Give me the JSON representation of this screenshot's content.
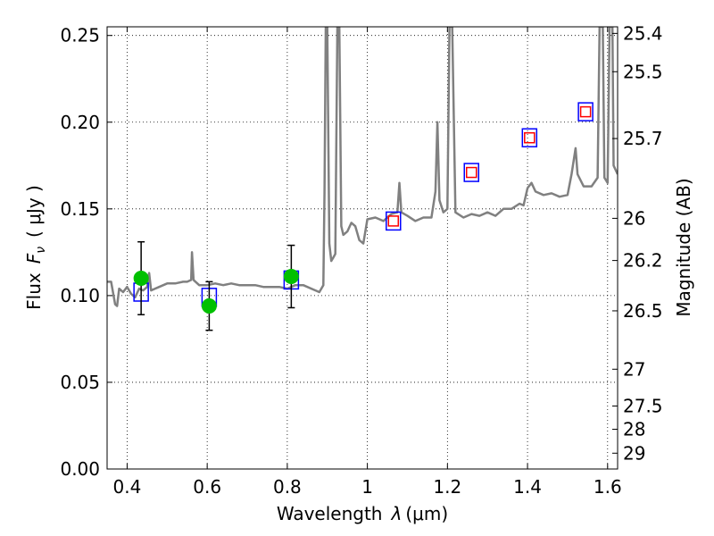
{
  "chart_data": {
    "type": "line",
    "xlabel": "Wavelength",
    "xlabel_symbol": "λ",
    "xlabel_unit": "(μm)",
    "ylabel": "Flux",
    "ylabel_symbol": "F",
    "ylabel_subscript": "ν",
    "ylabel_unit": "( μJy )",
    "y2label": "Magnitude (AB)",
    "xlim": [
      0.35,
      1.625
    ],
    "ylim": [
      0.0,
      0.255
    ],
    "grid": true,
    "x_ticks": [
      {
        "value": 0.4,
        "label": "0.4"
      },
      {
        "value": 0.6,
        "label": "0.6"
      },
      {
        "value": 0.8,
        "label": "0.8"
      },
      {
        "value": 1.0,
        "label": "1"
      },
      {
        "value": 1.2,
        "label": "1.2"
      },
      {
        "value": 1.4,
        "label": "1.4"
      },
      {
        "value": 1.6,
        "label": "1.6"
      }
    ],
    "y_ticks": [
      {
        "value": 0.0,
        "label": "0.00"
      },
      {
        "value": 0.05,
        "label": "0.05"
      },
      {
        "value": 0.1,
        "label": "0.10"
      },
      {
        "value": 0.15,
        "label": "0.15"
      },
      {
        "value": 0.2,
        "label": "0.20"
      },
      {
        "value": 0.25,
        "label": "0.25"
      }
    ],
    "mag_ticks": [
      {
        "value": 25.4,
        "label": "25.4"
      },
      {
        "value": 25.5,
        "label": "25.5"
      },
      {
        "value": 25.7,
        "label": "25.7"
      },
      {
        "value": 26.0,
        "label": "26"
      },
      {
        "value": 26.2,
        "label": "26.2"
      },
      {
        "value": 26.5,
        "label": "26.5"
      },
      {
        "value": 27.0,
        "label": "27"
      },
      {
        "value": 27.5,
        "label": "27.5"
      },
      {
        "value": 28.0,
        "label": "28"
      },
      {
        "value": 29.0,
        "label": "29"
      }
    ],
    "model_spectrum": {
      "color": "#808080",
      "points": [
        [
          0.35,
          0.108
        ],
        [
          0.36,
          0.108
        ],
        [
          0.37,
          0.095
        ],
        [
          0.375,
          0.094
        ],
        [
          0.38,
          0.104
        ],
        [
          0.39,
          0.102
        ],
        [
          0.4,
          0.105
        ],
        [
          0.41,
          0.101
        ],
        [
          0.42,
          0.099
        ],
        [
          0.43,
          0.104
        ],
        [
          0.44,
          0.103
        ],
        [
          0.45,
          0.105
        ],
        [
          0.455,
          0.113
        ],
        [
          0.46,
          0.103
        ],
        [
          0.47,
          0.104
        ],
        [
          0.48,
          0.105
        ],
        [
          0.5,
          0.107
        ],
        [
          0.52,
          0.107
        ],
        [
          0.54,
          0.108
        ],
        [
          0.55,
          0.108
        ],
        [
          0.56,
          0.109
        ],
        [
          0.562,
          0.125
        ],
        [
          0.566,
          0.109
        ],
        [
          0.58,
          0.106
        ],
        [
          0.6,
          0.106
        ],
        [
          0.62,
          0.107
        ],
        [
          0.64,
          0.106
        ],
        [
          0.66,
          0.107
        ],
        [
          0.68,
          0.106
        ],
        [
          0.7,
          0.106
        ],
        [
          0.72,
          0.106
        ],
        [
          0.74,
          0.105
        ],
        [
          0.76,
          0.105
        ],
        [
          0.78,
          0.105
        ],
        [
          0.8,
          0.104
        ],
        [
          0.82,
          0.106
        ],
        [
          0.84,
          0.106
        ],
        [
          0.86,
          0.104
        ],
        [
          0.88,
          0.102
        ],
        [
          0.89,
          0.106
        ],
        [
          0.893,
          0.16
        ],
        [
          0.896,
          0.255
        ],
        [
          0.9,
          0.255
        ],
        [
          0.905,
          0.13
        ],
        [
          0.91,
          0.12
        ],
        [
          0.915,
          0.122
        ],
        [
          0.92,
          0.124
        ],
        [
          0.925,
          0.255
        ],
        [
          0.93,
          0.255
        ],
        [
          0.935,
          0.14
        ],
        [
          0.94,
          0.135
        ],
        [
          0.95,
          0.137
        ],
        [
          0.96,
          0.142
        ],
        [
          0.97,
          0.14
        ],
        [
          0.98,
          0.132
        ],
        [
          0.99,
          0.13
        ],
        [
          1.0,
          0.144
        ],
        [
          1.02,
          0.145
        ],
        [
          1.04,
          0.143
        ],
        [
          1.06,
          0.147
        ],
        [
          1.075,
          0.148
        ],
        [
          1.08,
          0.165
        ],
        [
          1.085,
          0.148
        ],
        [
          1.1,
          0.146
        ],
        [
          1.12,
          0.143
        ],
        [
          1.14,
          0.145
        ],
        [
          1.16,
          0.145
        ],
        [
          1.17,
          0.16
        ],
        [
          1.175,
          0.2
        ],
        [
          1.18,
          0.155
        ],
        [
          1.19,
          0.148
        ],
        [
          1.2,
          0.15
        ],
        [
          1.205,
          0.255
        ],
        [
          1.212,
          0.255
        ],
        [
          1.22,
          0.148
        ],
        [
          1.24,
          0.145
        ],
        [
          1.26,
          0.147
        ],
        [
          1.28,
          0.146
        ],
        [
          1.3,
          0.148
        ],
        [
          1.32,
          0.146
        ],
        [
          1.34,
          0.15
        ],
        [
          1.36,
          0.15
        ],
        [
          1.38,
          0.153
        ],
        [
          1.39,
          0.152
        ],
        [
          1.4,
          0.162
        ],
        [
          1.41,
          0.165
        ],
        [
          1.42,
          0.16
        ],
        [
          1.44,
          0.158
        ],
        [
          1.46,
          0.159
        ],
        [
          1.48,
          0.157
        ],
        [
          1.5,
          0.158
        ],
        [
          1.51,
          0.17
        ],
        [
          1.52,
          0.185
        ],
        [
          1.525,
          0.17
        ],
        [
          1.54,
          0.163
        ],
        [
          1.56,
          0.163
        ],
        [
          1.575,
          0.168
        ],
        [
          1.58,
          0.255
        ],
        [
          1.588,
          0.255
        ],
        [
          1.592,
          0.168
        ],
        [
          1.6,
          0.165
        ],
        [
          1.605,
          0.255
        ],
        [
          1.612,
          0.255
        ],
        [
          1.615,
          0.175
        ],
        [
          1.625,
          0.17
        ]
      ]
    },
    "series": [
      {
        "marker": "open-square",
        "color": "#0000ff",
        "points": [
          [
            0.435,
            0.102
          ],
          [
            0.605,
            0.099
          ],
          [
            0.81,
            0.109
          ],
          [
            1.065,
            0.143
          ],
          [
            1.26,
            0.171
          ],
          [
            1.405,
            0.191
          ],
          [
            1.545,
            0.206
          ]
        ]
      },
      {
        "marker": "filled-circle",
        "color": "#00c000",
        "points": [
          [
            0.435,
            0.11,
            0.021
          ],
          [
            0.605,
            0.094,
            0.014
          ],
          [
            0.81,
            0.111,
            0.018
          ]
        ]
      },
      {
        "marker": "small-open-square",
        "color": "#ff0000",
        "points": [
          [
            1.065,
            0.143
          ],
          [
            1.26,
            0.171
          ],
          [
            1.405,
            0.191
          ],
          [
            1.545,
            0.206
          ]
        ]
      }
    ]
  }
}
